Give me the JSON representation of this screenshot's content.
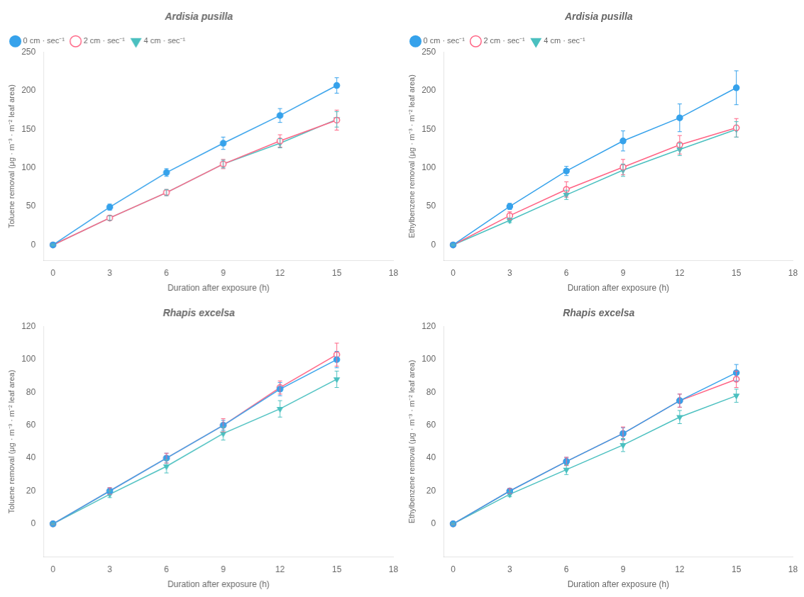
{
  "chart_data": [
    {
      "type": "line",
      "title": "Ardisia pusilla",
      "xlabel": "Duration after exposure (h)",
      "ylabel": "Toluene removal (μg · m⁻³ · m⁻² leaf area)",
      "x": [
        0,
        3,
        6,
        9,
        12,
        15
      ],
      "series": [
        {
          "name": "0 cm · sec⁻¹",
          "marker": "circle",
          "values": [
            0,
            49,
            94,
            132,
            168,
            207
          ],
          "errors": [
            1,
            4,
            5,
            8,
            9,
            10
          ]
        },
        {
          "name": "2 cm · sec⁻¹",
          "marker": "open circle",
          "values": [
            0,
            35,
            68,
            105,
            135,
            162
          ],
          "errors": [
            1,
            3,
            4,
            6,
            8,
            13
          ]
        },
        {
          "name": "4 cm · sec⁻¹",
          "marker": "triangle down",
          "values": [
            0,
            35,
            68,
            105,
            132,
            163
          ],
          "errors": [
            1,
            3,
            4,
            5,
            6,
            10
          ]
        }
      ],
      "xlim": [
        -0.5,
        18
      ],
      "xticks": [
        0,
        3,
        6,
        9,
        12,
        15,
        18
      ],
      "ylim": [
        -20,
        250
      ],
      "yticks": [
        0,
        50,
        100,
        150,
        200,
        250
      ],
      "grid": false,
      "legend": "upper left"
    },
    {
      "type": "line",
      "title": "Ardisia pusilla",
      "xlabel": "Duration after exposure (h)",
      "ylabel": "Ethylbenzene removal (μg · m⁻³ · m⁻² leaf area)",
      "x": [
        0,
        3,
        6,
        9,
        12,
        15
      ],
      "series": [
        {
          "name": "0 cm · sec⁻¹",
          "marker": "circle",
          "values": [
            0,
            50,
            96,
            135,
            165,
            204
          ],
          "errors": [
            1,
            4,
            6,
            13,
            18,
            22
          ]
        },
        {
          "name": "2 cm · sec⁻¹",
          "marker": "open circle",
          "values": [
            0,
            38,
            72,
            101,
            130,
            152
          ],
          "errors": [
            1,
            5,
            10,
            10,
            12,
            12
          ]
        },
        {
          "name": "4 cm · sec⁻¹",
          "marker": "triangle down",
          "values": [
            0,
            32,
            65,
            97,
            124,
            150
          ],
          "errors": [
            1,
            3,
            6,
            8,
            8,
            10
          ]
        }
      ],
      "xlim": [
        -0.5,
        18
      ],
      "xticks": [
        0,
        3,
        6,
        9,
        12,
        15,
        18
      ],
      "ylim": [
        -20,
        250
      ],
      "yticks": [
        0,
        50,
        100,
        150,
        200,
        250
      ],
      "grid": false,
      "legend": "upper left"
    },
    {
      "type": "line",
      "title": "Rhapis excelsa",
      "xlabel": "Duration after exposure (h)",
      "ylabel": "Toluene removal (μg · m⁻³ · m⁻² leaf area)",
      "x": [
        0,
        3,
        6,
        9,
        12,
        15
      ],
      "series": [
        {
          "name": "0 cm · sec⁻¹",
          "marker": "circle",
          "values": [
            0,
            20,
            40,
            60,
            82,
            100
          ],
          "errors": [
            0.5,
            2,
            3,
            3,
            4,
            5
          ]
        },
        {
          "name": "2 cm · sec⁻¹",
          "marker": "open circle",
          "values": [
            0,
            20,
            40,
            60,
            83,
            103
          ],
          "errors": [
            0.5,
            2,
            3,
            4,
            4,
            7
          ]
        },
        {
          "name": "4 cm · sec⁻¹",
          "marker": "triangle down",
          "values": [
            0,
            18,
            35,
            55,
            70,
            88
          ],
          "errors": [
            0.5,
            2,
            4,
            4,
            5,
            5
          ]
        }
      ],
      "xlim": [
        -0.5,
        18
      ],
      "xticks": [
        0,
        3,
        6,
        9,
        12,
        15,
        18
      ],
      "ylim": [
        -20,
        120
      ],
      "yticks": [
        0,
        20,
        40,
        60,
        80,
        100,
        120
      ],
      "grid": false
    },
    {
      "type": "line",
      "title": "Rhapis excelsa",
      "xlabel": "Duration after exposure (h)",
      "ylabel": "Ethylbenzene removal (μg · m⁻³ · m⁻² leaf area)",
      "x": [
        0,
        3,
        6,
        9,
        12,
        15
      ],
      "series": [
        {
          "name": "0 cm · sec⁻¹",
          "marker": "circle",
          "values": [
            0,
            20,
            38,
            55,
            75,
            92
          ],
          "errors": [
            0.5,
            1.5,
            2.5,
            3.5,
            4,
            5
          ]
        },
        {
          "name": "2 cm · sec⁻¹",
          "marker": "open circle",
          "values": [
            0,
            20,
            38,
            55,
            75,
            88
          ],
          "errors": [
            0.5,
            1.5,
            2.5,
            4,
            4,
            5
          ]
        },
        {
          "name": "4 cm · sec⁻¹",
          "marker": "triangle down",
          "values": [
            0,
            18,
            33,
            48,
            65,
            78
          ],
          "errors": [
            0.5,
            1.5,
            3,
            4,
            4,
            4
          ]
        }
      ],
      "xlim": [
        -0.5,
        18
      ],
      "xticks": [
        0,
        3,
        6,
        9,
        12,
        15,
        18
      ],
      "ylim": [
        -20,
        120
      ],
      "yticks": [
        0,
        20,
        40,
        60,
        80,
        100,
        120
      ],
      "grid": false
    }
  ]
}
